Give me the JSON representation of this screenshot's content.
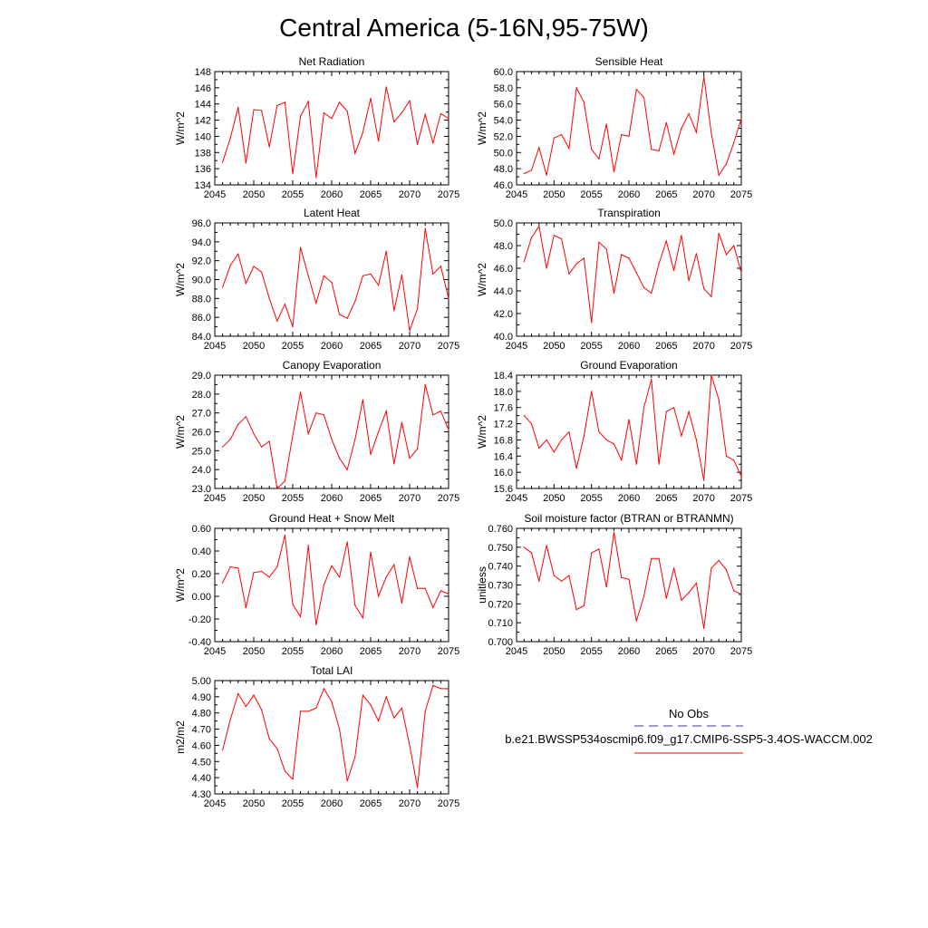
{
  "page_title": "Central America (5-16N,95-75W)",
  "colors": {
    "series": "#ff0000",
    "obs": "#3a3aa0",
    "axis": "#000000"
  },
  "legend": {
    "obs_label": "No Obs",
    "run_label": "b.e21.BWSSP534oscmip6.f09_g17.CMIP6-SSP5-3.4OS-WACCM.002"
  },
  "chart_data": [
    {
      "type": "line",
      "title": "Net Radiation",
      "ylabel": "W/m^2",
      "xlim": [
        2045,
        2075
      ],
      "ylim": [
        134,
        148
      ],
      "xticks": [
        2045,
        2050,
        2055,
        2060,
        2065,
        2070,
        2075
      ],
      "ytick_labels": [
        "134",
        "136",
        "138",
        "140",
        "142",
        "144",
        "146",
        "148"
      ],
      "x": [
        2046,
        2047,
        2048,
        2049,
        2050,
        2051,
        2052,
        2053,
        2054,
        2055,
        2056,
        2057,
        2058,
        2059,
        2060,
        2061,
        2062,
        2063,
        2064,
        2065,
        2066,
        2067,
        2068,
        2069,
        2070,
        2071,
        2072,
        2073,
        2074,
        2075
      ],
      "values": [
        136.8,
        139.8,
        143.6,
        136.7,
        143.3,
        143.2,
        138.7,
        143.8,
        144.2,
        135.4,
        142.5,
        144.3,
        134.9,
        142.9,
        142.2,
        144.2,
        143.1,
        137.9,
        140.5,
        144.7,
        139.4,
        146.1,
        141.8,
        142.9,
        144.4,
        139.0,
        142.7,
        139.2,
        142.8,
        142.2
      ]
    },
    {
      "type": "line",
      "title": "Sensible Heat",
      "ylabel": "W/m^2",
      "xlim": [
        2045,
        2075
      ],
      "ylim": [
        46,
        60
      ],
      "xticks": [
        2045,
        2050,
        2055,
        2060,
        2065,
        2070,
        2075
      ],
      "ytick_labels": [
        "46.0",
        "48.0",
        "50.0",
        "52.0",
        "54.0",
        "56.0",
        "58.0",
        "60.0"
      ],
      "x": [
        2046,
        2047,
        2048,
        2049,
        2050,
        2051,
        2052,
        2053,
        2054,
        2055,
        2056,
        2057,
        2058,
        2059,
        2060,
        2061,
        2062,
        2063,
        2064,
        2065,
        2066,
        2067,
        2068,
        2069,
        2070,
        2071,
        2072,
        2073,
        2074,
        2075
      ],
      "values": [
        47.4,
        47.8,
        50.6,
        47.2,
        51.8,
        52.2,
        50.5,
        58.0,
        56.2,
        50.4,
        49.2,
        53.5,
        47.6,
        52.2,
        52.0,
        57.8,
        56.8,
        50.4,
        50.2,
        53.7,
        49.8,
        53.0,
        54.8,
        52.5,
        59.4,
        52.4,
        47.2,
        48.6,
        51.2,
        54.2
      ]
    },
    {
      "type": "line",
      "title": "Latent Heat",
      "ylabel": "W/m^2",
      "xlim": [
        2045,
        2075
      ],
      "ylim": [
        84,
        96
      ],
      "xticks": [
        2045,
        2050,
        2055,
        2060,
        2065,
        2070,
        2075
      ],
      "ytick_labels": [
        "84.0",
        "86.0",
        "88.0",
        "90.0",
        "92.0",
        "94.0",
        "96.0"
      ],
      "x": [
        2046,
        2047,
        2048,
        2049,
        2050,
        2051,
        2052,
        2053,
        2054,
        2055,
        2056,
        2057,
        2058,
        2059,
        2060,
        2061,
        2062,
        2063,
        2064,
        2065,
        2066,
        2067,
        2068,
        2069,
        2070,
        2071,
        2072,
        2073,
        2074,
        2075
      ],
      "values": [
        89.2,
        91.5,
        92.7,
        89.6,
        91.4,
        90.8,
        88.0,
        85.6,
        87.4,
        85.0,
        93.4,
        90.4,
        87.5,
        90.4,
        89.7,
        86.3,
        85.9,
        87.7,
        90.4,
        90.6,
        89.4,
        93.0,
        86.7,
        90.5,
        84.6,
        86.9,
        95.4,
        90.6,
        91.4,
        88.0
      ]
    },
    {
      "type": "line",
      "title": "Transpiration",
      "ylabel": "W/m^2",
      "xlim": [
        2045,
        2075
      ],
      "ylim": [
        40,
        50
      ],
      "xticks": [
        2045,
        2050,
        2055,
        2060,
        2065,
        2070,
        2075
      ],
      "ytick_labels": [
        "40.0",
        "42.0",
        "44.0",
        "46.0",
        "48.0",
        "50.0"
      ],
      "x": [
        2046,
        2047,
        2048,
        2049,
        2050,
        2051,
        2052,
        2053,
        2054,
        2055,
        2056,
        2057,
        2058,
        2059,
        2060,
        2061,
        2062,
        2063,
        2064,
        2065,
        2066,
        2067,
        2068,
        2069,
        2070,
        2071,
        2072,
        2073,
        2074,
        2075
      ],
      "values": [
        46.6,
        48.7,
        49.7,
        46.0,
        48.9,
        48.6,
        45.5,
        46.4,
        46.9,
        41.2,
        48.3,
        47.7,
        43.8,
        47.2,
        46.9,
        45.6,
        44.3,
        43.8,
        46.4,
        48.4,
        45.8,
        48.9,
        44.9,
        47.3,
        44.2,
        43.5,
        49.1,
        47.2,
        48.0,
        45.6
      ]
    },
    {
      "type": "line",
      "title": "Canopy Evaporation",
      "ylabel": "W/m^2",
      "xlim": [
        2045,
        2075
      ],
      "ylim": [
        23,
        29
      ],
      "xticks": [
        2045,
        2050,
        2055,
        2060,
        2065,
        2070,
        2075
      ],
      "ytick_labels": [
        "23.0",
        "24.0",
        "25.0",
        "26.0",
        "27.0",
        "28.0",
        "29.0"
      ],
      "x": [
        2046,
        2047,
        2048,
        2049,
        2050,
        2051,
        2052,
        2053,
        2054,
        2055,
        2056,
        2057,
        2058,
        2059,
        2060,
        2061,
        2062,
        2063,
        2064,
        2065,
        2066,
        2067,
        2068,
        2069,
        2070,
        2071,
        2072,
        2073,
        2074,
        2075
      ],
      "values": [
        25.2,
        25.6,
        26.4,
        26.8,
        25.9,
        25.2,
        25.5,
        23.0,
        23.4,
        25.8,
        28.1,
        25.9,
        27.0,
        26.9,
        25.6,
        24.6,
        24.0,
        25.6,
        27.7,
        24.8,
        26.0,
        27.1,
        24.3,
        26.5,
        24.6,
        25.1,
        28.5,
        26.9,
        27.1,
        26.1
      ]
    },
    {
      "type": "line",
      "title": "Ground Evaporation",
      "ylabel": "W/m^2",
      "xlim": [
        2045,
        2075
      ],
      "ylim": [
        15.6,
        18.4
      ],
      "xticks": [
        2045,
        2050,
        2055,
        2060,
        2065,
        2070,
        2075
      ],
      "ytick_labels": [
        "15.6",
        "16.0",
        "16.4",
        "16.8",
        "17.2",
        "17.6",
        "18.0",
        "18.4"
      ],
      "x": [
        2046,
        2047,
        2048,
        2049,
        2050,
        2051,
        2052,
        2053,
        2054,
        2055,
        2056,
        2057,
        2058,
        2059,
        2060,
        2061,
        2062,
        2063,
        2064,
        2065,
        2066,
        2067,
        2068,
        2069,
        2070,
        2071,
        2072,
        2073,
        2074,
        2075
      ],
      "values": [
        17.4,
        17.2,
        16.6,
        16.8,
        16.5,
        16.8,
        17.0,
        16.1,
        16.9,
        18.0,
        17.0,
        16.8,
        16.7,
        16.3,
        17.3,
        16.2,
        17.6,
        18.3,
        16.2,
        17.5,
        17.6,
        16.9,
        17.5,
        16.8,
        15.8,
        18.4,
        17.8,
        16.4,
        16.3,
        15.9
      ]
    },
    {
      "type": "line",
      "title": "Ground Heat + Snow Melt",
      "ylabel": "W/m^2",
      "xlim": [
        2045,
        2075
      ],
      "ylim": [
        -0.4,
        0.6
      ],
      "xticks": [
        2045,
        2050,
        2055,
        2060,
        2065,
        2070,
        2075
      ],
      "ytick_labels": [
        "-0.40",
        "-0.20",
        "0.00",
        "0.20",
        "0.40",
        "0.60"
      ],
      "x": [
        2046,
        2047,
        2048,
        2049,
        2050,
        2051,
        2052,
        2053,
        2054,
        2055,
        2056,
        2057,
        2058,
        2059,
        2060,
        2061,
        2062,
        2063,
        2064,
        2065,
        2066,
        2067,
        2068,
        2069,
        2070,
        2071,
        2072,
        2073,
        2074,
        2075
      ],
      "values": [
        0.12,
        0.26,
        0.25,
        -0.1,
        0.21,
        0.22,
        0.17,
        0.26,
        0.54,
        -0.07,
        -0.18,
        0.45,
        -0.25,
        0.1,
        0.27,
        0.17,
        0.48,
        -0.08,
        -0.19,
        0.39,
        0.0,
        0.17,
        0.28,
        -0.06,
        0.35,
        0.07,
        0.07,
        -0.1,
        0.05,
        0.02
      ]
    },
    {
      "type": "line",
      "title": "Soil moisture factor (BTRAN or BTRANMN)",
      "ylabel": "unitless",
      "xlim": [
        2045,
        2075
      ],
      "ylim": [
        0.7,
        0.76
      ],
      "xticks": [
        2045,
        2050,
        2055,
        2060,
        2065,
        2070,
        2075
      ],
      "ytick_labels": [
        "0.700",
        "0.710",
        "0.720",
        "0.730",
        "0.740",
        "0.750",
        "0.760"
      ],
      "x": [
        2046,
        2047,
        2048,
        2049,
        2050,
        2051,
        2052,
        2053,
        2054,
        2055,
        2056,
        2057,
        2058,
        2059,
        2060,
        2061,
        2062,
        2063,
        2064,
        2065,
        2066,
        2067,
        2068,
        2069,
        2070,
        2071,
        2072,
        2073,
        2074,
        2075
      ],
      "values": [
        0.75,
        0.747,
        0.732,
        0.751,
        0.735,
        0.732,
        0.735,
        0.717,
        0.719,
        0.747,
        0.749,
        0.729,
        0.758,
        0.734,
        0.733,
        0.711,
        0.724,
        0.744,
        0.744,
        0.723,
        0.739,
        0.722,
        0.726,
        0.731,
        0.707,
        0.739,
        0.743,
        0.738,
        0.727,
        0.725
      ]
    },
    {
      "type": "line",
      "title": "Total LAI",
      "ylabel": "m2/m2",
      "xlim": [
        2045,
        2075
      ],
      "ylim": [
        4.3,
        5.0
      ],
      "xticks": [
        2045,
        2050,
        2055,
        2060,
        2065,
        2070,
        2075
      ],
      "ytick_labels": [
        "4.30",
        "4.40",
        "4.50",
        "4.60",
        "4.70",
        "4.80",
        "4.90",
        "5.00"
      ],
      "x": [
        2046,
        2047,
        2048,
        2049,
        2050,
        2051,
        2052,
        2053,
        2054,
        2055,
        2056,
        2057,
        2058,
        2059,
        2060,
        2061,
        2062,
        2063,
        2064,
        2065,
        2066,
        2067,
        2068,
        2069,
        2070,
        2071,
        2072,
        2073,
        2074,
        2075
      ],
      "values": [
        4.57,
        4.76,
        4.92,
        4.84,
        4.91,
        4.82,
        4.64,
        4.58,
        4.44,
        4.39,
        4.81,
        4.81,
        4.83,
        4.95,
        4.87,
        4.7,
        4.38,
        4.53,
        4.91,
        4.85,
        4.75,
        4.9,
        4.77,
        4.83,
        4.6,
        4.34,
        4.81,
        4.97,
        4.95,
        4.95
      ]
    }
  ]
}
